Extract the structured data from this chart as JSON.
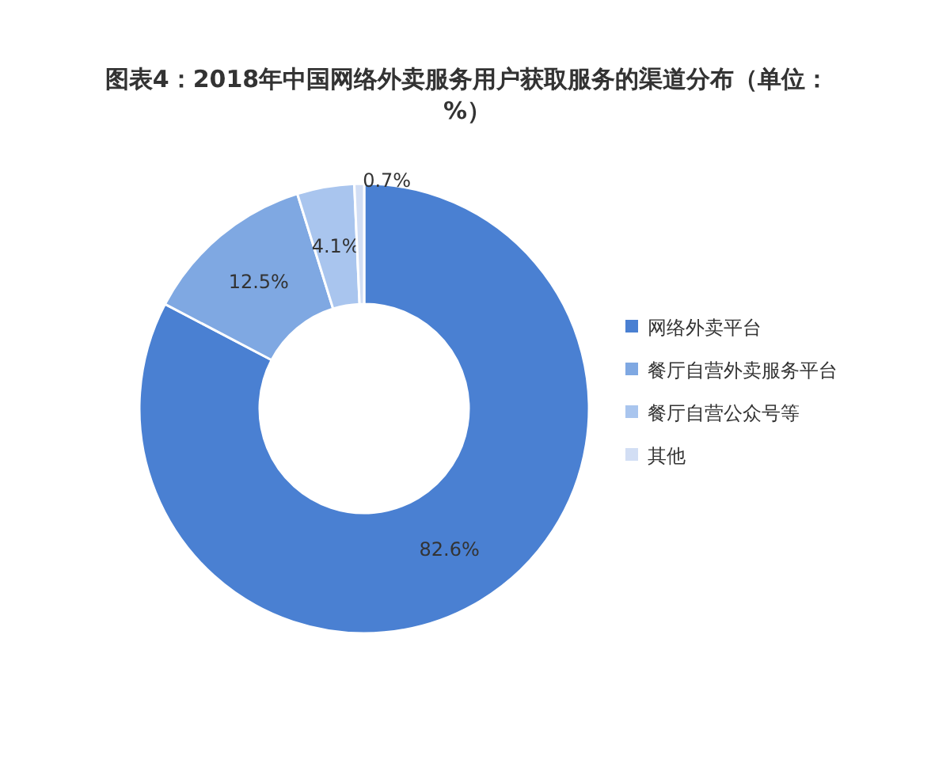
{
  "chart_data": {
    "type": "donut",
    "title": "图表4：2018年中国网络外卖服务用户获取服务的渠道分布（单位：%）",
    "categories": [
      "网络外卖平台",
      "餐厅自营外卖服务平台",
      "餐厅自营公众号等",
      "其他"
    ],
    "values": [
      82.6,
      12.5,
      4.1,
      0.7
    ],
    "colors": [
      "#4a80d2",
      "#7fa8e2",
      "#a9c5ee",
      "#d2def4"
    ],
    "value_labels": [
      "82.6%",
      "12.5%",
      "4.1%",
      "0.7%"
    ],
    "legend": "right"
  }
}
